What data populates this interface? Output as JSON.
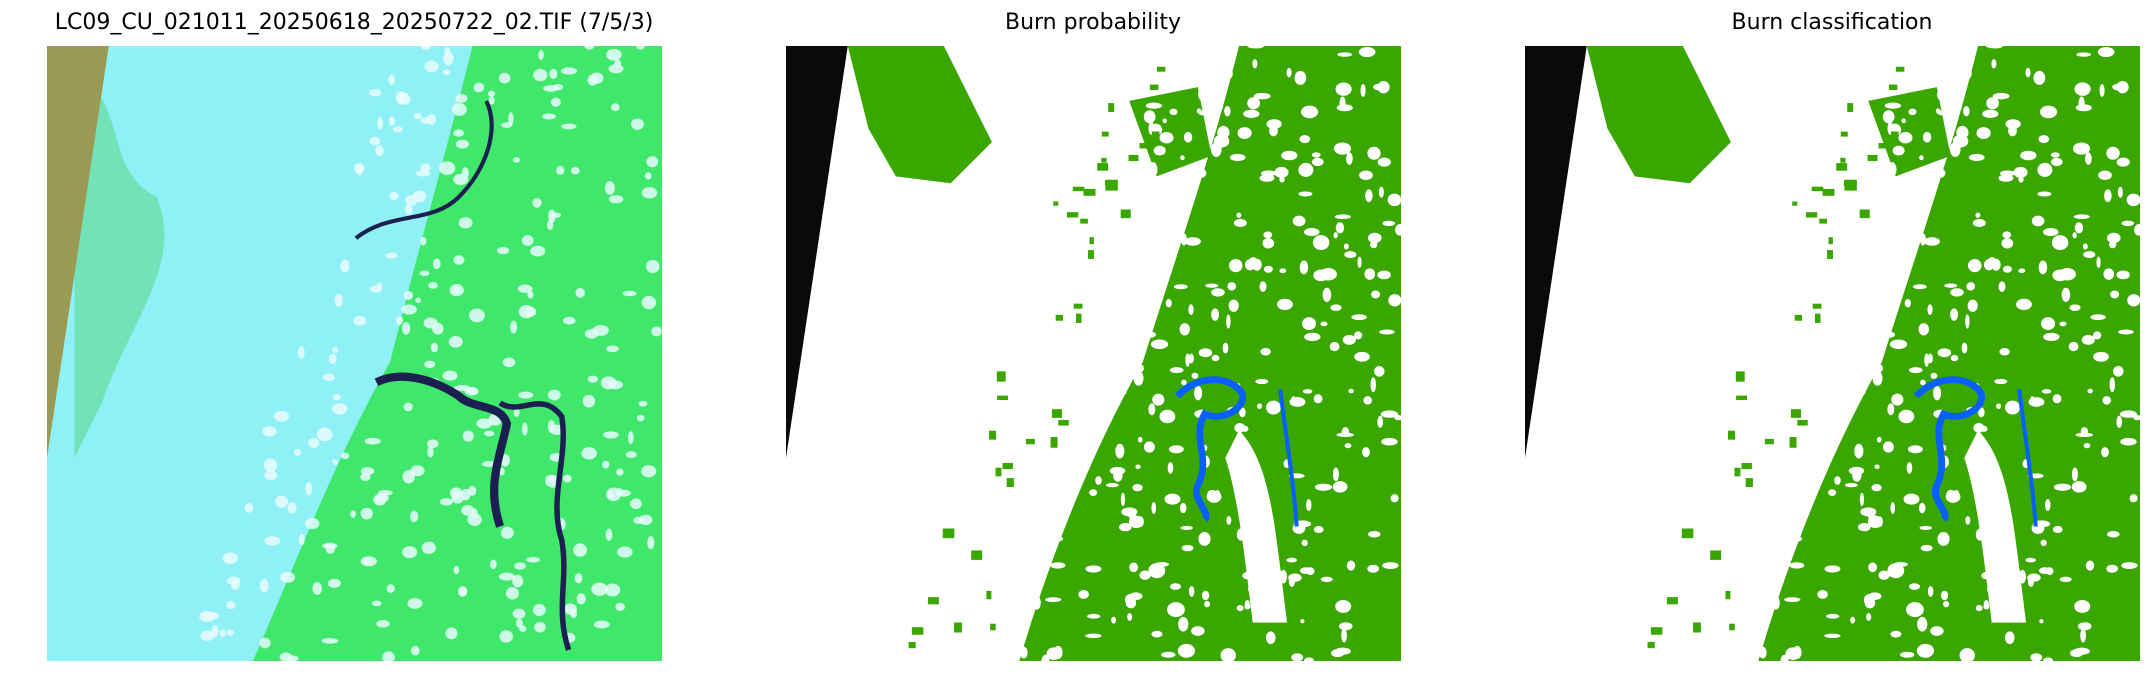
{
  "panels": [
    {
      "title": "LC09_CU_021011_20250618_20250722_02.TIF (7/5/3)",
      "kind": "rgb-composite"
    },
    {
      "title": "Burn probability",
      "kind": "probability-map"
    },
    {
      "title": "Burn classification",
      "kind": "classification-map"
    }
  ],
  "colors": {
    "cloud": "#8ff0f5",
    "vegetation_rgb": "#3fe86a",
    "nodata_rgb": "#9a9a55",
    "water_rgb": "#1c2050",
    "burned": "#3aa600",
    "water": "#0a60ff",
    "nodata": "#0a0a0a",
    "background": "#ffffff"
  }
}
